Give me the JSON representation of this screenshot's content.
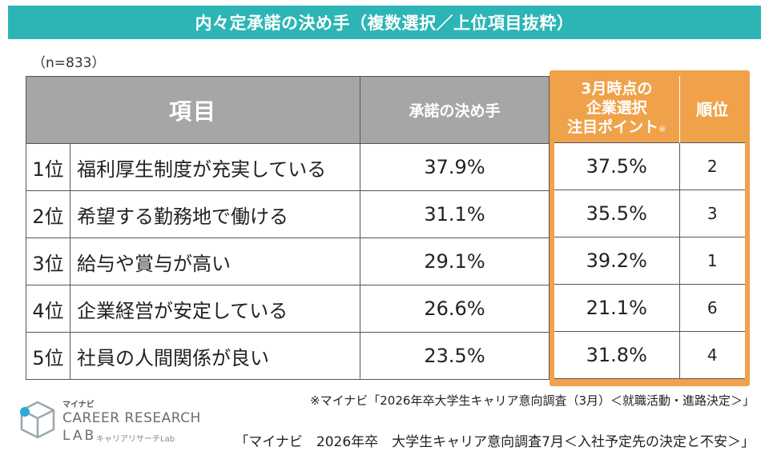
{
  "title": "内々定承諾の決め手（複数選択／上位項目抜粋）",
  "sample_size": "（n=833）",
  "table": {
    "header_item": "項目",
    "header_decision": "承諾の決め手",
    "header_point_line1": "3月時点の",
    "header_point_line2": "企業選択",
    "header_point_line3": "注目ポイント",
    "header_point_note": "※",
    "header_rank": "順位",
    "rows": [
      {
        "rank": "1位",
        "label": "福利厚生制度が充実している",
        "decision_pct": "37.9%",
        "point_pct": "37.5%",
        "point_rank": "2"
      },
      {
        "rank": "2位",
        "label": "希望する勤務地で働ける",
        "decision_pct": "31.1%",
        "point_pct": "35.5%",
        "point_rank": "3"
      },
      {
        "rank": "3位",
        "label": "給与や賞与が高い",
        "decision_pct": "29.1%",
        "point_pct": "39.2%",
        "point_rank": "1"
      },
      {
        "rank": "4位",
        "label": "企業経営が安定している",
        "decision_pct": "26.6%",
        "point_pct": "21.1%",
        "point_rank": "6"
      },
      {
        "rank": "5位",
        "label": "社員の人間関係が良い",
        "decision_pct": "23.5%",
        "point_pct": "31.8%",
        "point_rank": "4"
      }
    ]
  },
  "footnote": "※マイナビ「2026年卒大学生キャリア意向調査（3月）＜就職活動・進路決定＞」",
  "source": "「マイナビ　2026年卒　大学生キャリア意向調査7月＜入社予定先の決定と不安＞」",
  "logo": {
    "brand": "マイナビ",
    "main": "CAREER RESEARCH",
    "lab": "LAB",
    "sub": "キャリアリサーチLab"
  },
  "colors": {
    "title_bg": "#2db5b5",
    "header_gray": "#a6a6a6",
    "highlight_orange": "#f0a24a"
  }
}
